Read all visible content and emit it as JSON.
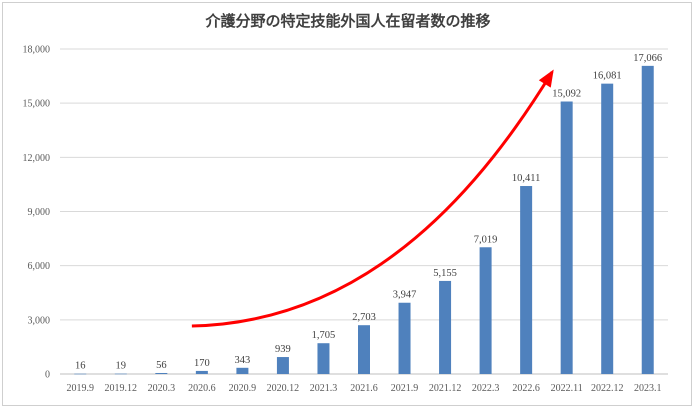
{
  "chart_data": {
    "type": "bar",
    "title": "介護分野の特定技能外国人在留者数の推移",
    "xlabel": "",
    "ylabel": "",
    "categories": [
      "2019.9",
      "2019.12",
      "2020.3",
      "2020.6",
      "2020.9",
      "2020.12",
      "2021.3",
      "2021.6",
      "2021.9",
      "2021.12",
      "2022.3",
      "2022.6",
      "2022.11",
      "2022.12",
      "2023.1"
    ],
    "values": [
      16,
      19,
      56,
      170,
      343,
      939,
      1705,
      2703,
      3947,
      5155,
      7019,
      10411,
      15092,
      16081,
      17066
    ],
    "data_labels": [
      "16",
      "19",
      "56",
      "170",
      "343",
      "939",
      "1,705",
      "2,703",
      "3,947",
      "5,155",
      "7,019",
      "10,411",
      "15,092",
      "16,081",
      "17,066"
    ],
    "y_ticks": [
      "0",
      "3,000",
      "6,000",
      "9,000",
      "12,000",
      "15,000",
      "18,000"
    ],
    "y_tick_values": [
      0,
      3000,
      6000,
      9000,
      12000,
      15000,
      18000
    ],
    "ylim": [
      0,
      18000
    ],
    "grid": true,
    "legend": "none",
    "bar_color": "#4f81bd",
    "trend_arrow_color": "#ff0000"
  }
}
